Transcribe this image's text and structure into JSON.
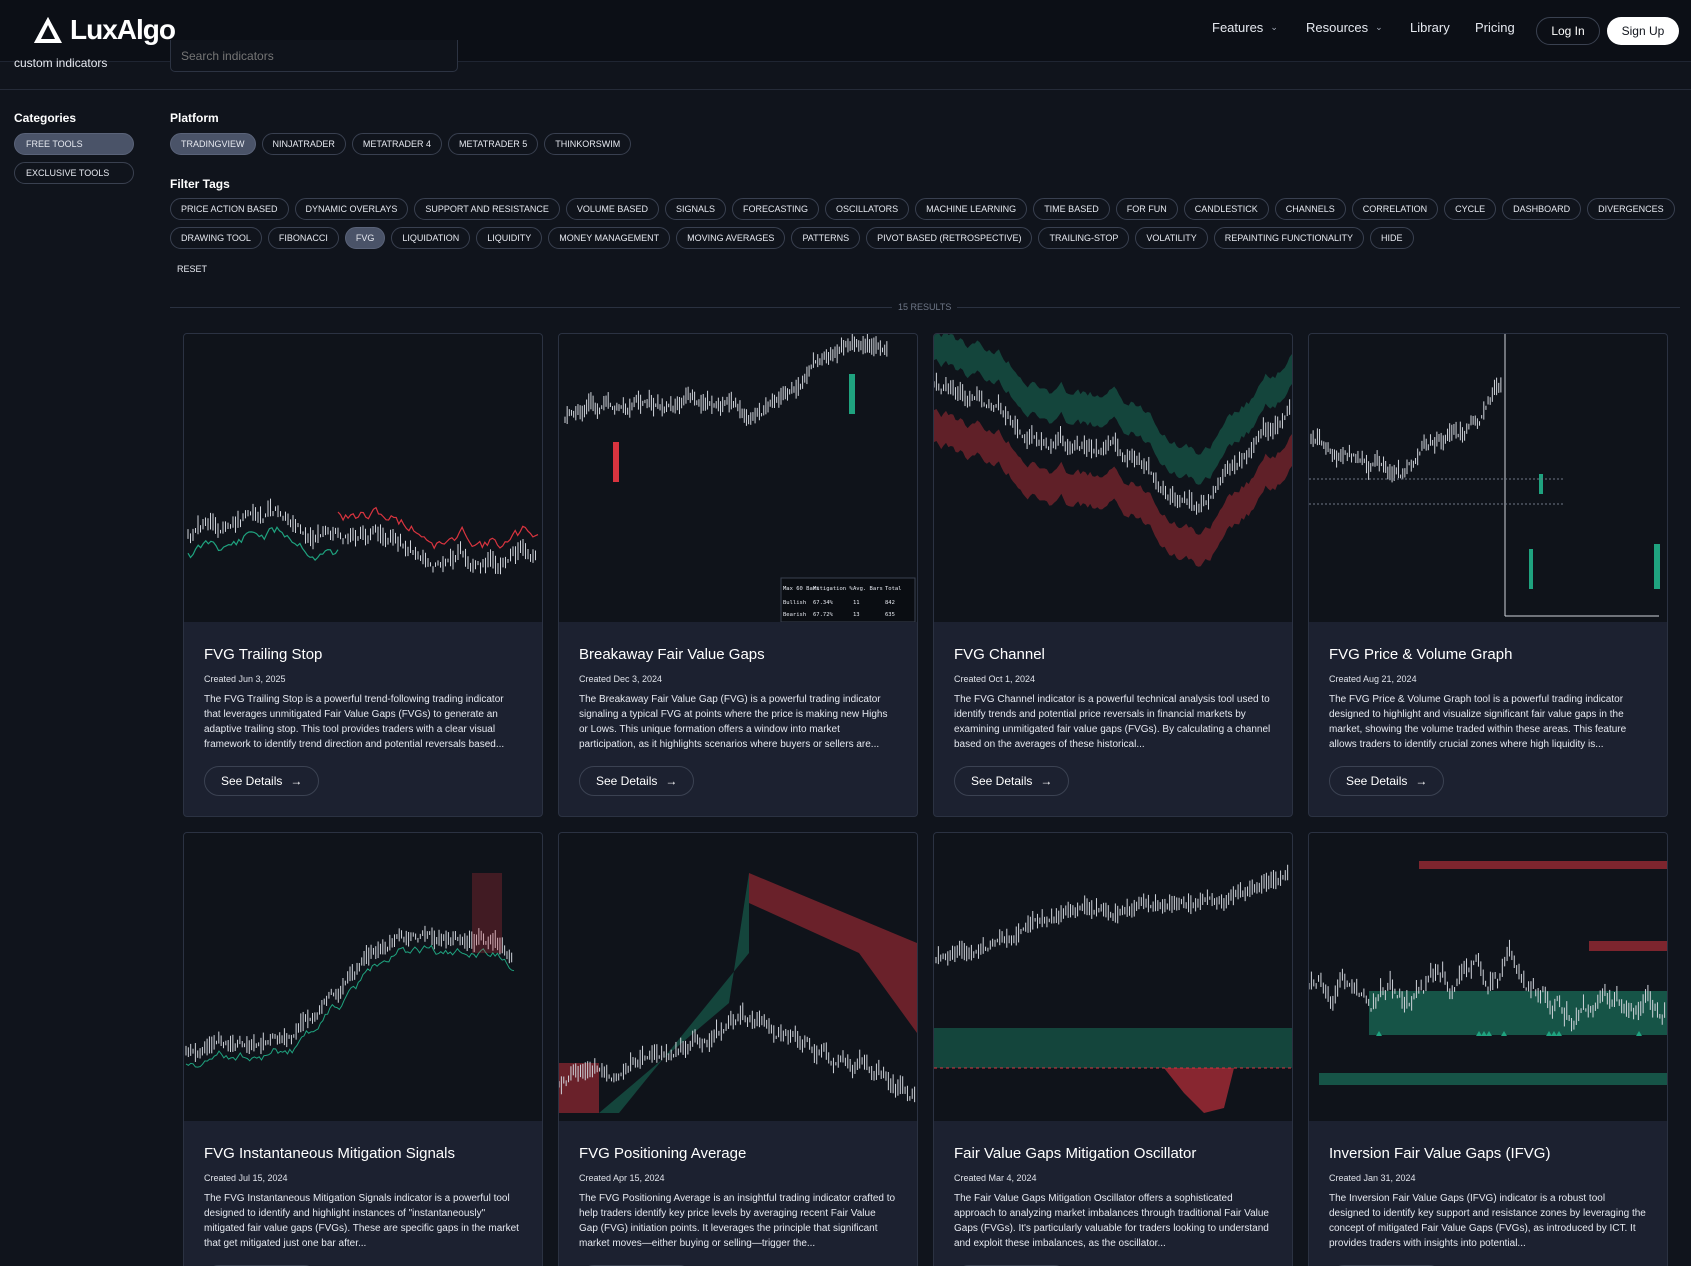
{
  "header": {
    "logo_text": "LuxAlgo",
    "subtitle": "custom indicators",
    "search_placeholder": "Search indicators",
    "nav": [
      {
        "label": "Features",
        "has_dropdown": true
      },
      {
        "label": "Resources",
        "has_dropdown": true
      },
      {
        "label": "Library",
        "has_dropdown": false
      },
      {
        "label": "Pricing",
        "has_dropdown": false
      }
    ],
    "login_label": "Log In",
    "signup_label": "Sign Up"
  },
  "sidebar": {
    "title": "Categories",
    "items": [
      {
        "label": "FREE TOOLS",
        "active": true
      },
      {
        "label": "EXCLUSIVE TOOLS",
        "active": false
      }
    ]
  },
  "platform": {
    "title": "Platform",
    "items": [
      {
        "label": "TRADINGVIEW",
        "active": true
      },
      {
        "label": "NINJATRADER",
        "active": false
      },
      {
        "label": "METATRADER 4",
        "active": false
      },
      {
        "label": "METATRADER 5",
        "active": false
      },
      {
        "label": "THINKORSWIM",
        "active": false
      }
    ]
  },
  "filters": {
    "title": "Filter Tags",
    "row1": [
      "PRICE ACTION BASED",
      "DYNAMIC OVERLAYS",
      "SUPPORT AND RESISTANCE",
      "VOLUME BASED",
      "SIGNALS",
      "FORECASTING",
      "OSCILLATORS",
      "MACHINE LEARNING",
      "TIME BASED",
      "FOR FUN",
      "CANDLESTICK",
      "CHANNELS",
      "CORRELATION",
      "CYCLE",
      "DASHBOARD",
      "DIVERGENCES"
    ],
    "row2": [
      "DRAWING TOOL",
      "FIBONACCI",
      "FVG",
      "LIQUIDATION",
      "LIQUIDITY",
      "MONEY MANAGEMENT",
      "MOVING AVERAGES",
      "PATTERNS",
      "PIVOT BASED (RETROSPECTIVE)",
      "TRAILING-STOP",
      "VOLATILITY",
      "REPAINTING FUNCTIONALITY",
      "HIDE"
    ],
    "active": "FVG",
    "reset_label": "RESET"
  },
  "results_label": "15 RESULTS",
  "colors": {
    "bull": "#1fa37f",
    "bear": "#d9343f",
    "bg": "#10141c",
    "card": "#1c2130"
  },
  "card_button_label": "See Details",
  "cards": [
    {
      "title": "FVG Trailing Stop",
      "date": "Created Jun 3, 2025",
      "desc": "The FVG Trailing Stop is a powerful trend-following trading indicator that leverages unmitigated Fair Value Gaps (FVGs) to generate an adaptive trailing stop. This tool provides traders with a clear visual framework to identify trend direction and potential reversals based..."
    },
    {
      "title": "Breakaway Fair Value Gaps",
      "date": "Created Dec 3, 2024",
      "desc": "The Breakaway Fair Value Gap (FVG) is a powerful trading indicator signaling a typical FVG at points where the price is making new Highs or Lows. This unique formation offers a window into market participation, as it highlights scenarios where buyers or sellers are..."
    },
    {
      "title": "FVG Channel",
      "date": "Created Oct 1, 2024",
      "desc": "The FVG Channel indicator is a powerful technical analysis tool used to identify trends and potential price reversals in financial markets by examining unmitigated fair value gaps (FVGs). By calculating a channel based on the averages of these historical..."
    },
    {
      "title": "FVG Price & Volume Graph",
      "date": "Created Aug 21, 2024",
      "desc": "The FVG Price & Volume Graph tool is a powerful trading indicator designed to highlight and visualize significant fair value gaps in the market, showing the volume traded within these areas. This feature allows traders to identify crucial zones where high liquidity is..."
    },
    {
      "title": "FVG Instantaneous Mitigation Signals",
      "date": "Created Jul 15, 2024",
      "desc": "The FVG Instantaneous Mitigation Signals indicator is a powerful tool designed to identify and highlight instances of \"instantaneously\" mitigated fair value gaps (FVGs). These are specific gaps in the market that get mitigated just one bar after..."
    },
    {
      "title": "FVG Positioning Average",
      "date": "Created Apr 15, 2024",
      "desc": "The FVG Positioning Average is an insightful trading indicator crafted to help traders identify key price levels by averaging recent Fair Value Gap (FVG) initiation points. It leverages the principle that significant market moves—either buying or selling—trigger the..."
    },
    {
      "title": "Fair Value Gaps Mitigation Oscillator",
      "date": "Created Mar 4, 2024",
      "desc": "The Fair Value Gaps Mitigation Oscillator offers a sophisticated approach to analyzing market imbalances through traditional Fair Value Gaps (FVGs). It's particularly valuable for traders looking to understand and exploit these imbalances, as the oscillator..."
    },
    {
      "title": "Inversion Fair Value Gaps (IFVG)",
      "date": "Created Jan 31, 2024",
      "desc": "The Inversion Fair Value Gaps (IFVG) indicator is a robust tool designed to identify key support and resistance zones by leveraging the concept of mitigated Fair Value Gaps (FVGs), as introduced by ICT. It provides traders with insights into potential..."
    }
  ],
  "stats_table": {
    "headers": [
      "Max 60 Bars",
      "Mitigation %",
      "Avg. Bars",
      "Total"
    ],
    "rows": [
      [
        "Bullish",
        "67.34%",
        "11",
        "842"
      ],
      [
        "Bearish",
        "67.72%",
        "13",
        "635"
      ]
    ]
  }
}
